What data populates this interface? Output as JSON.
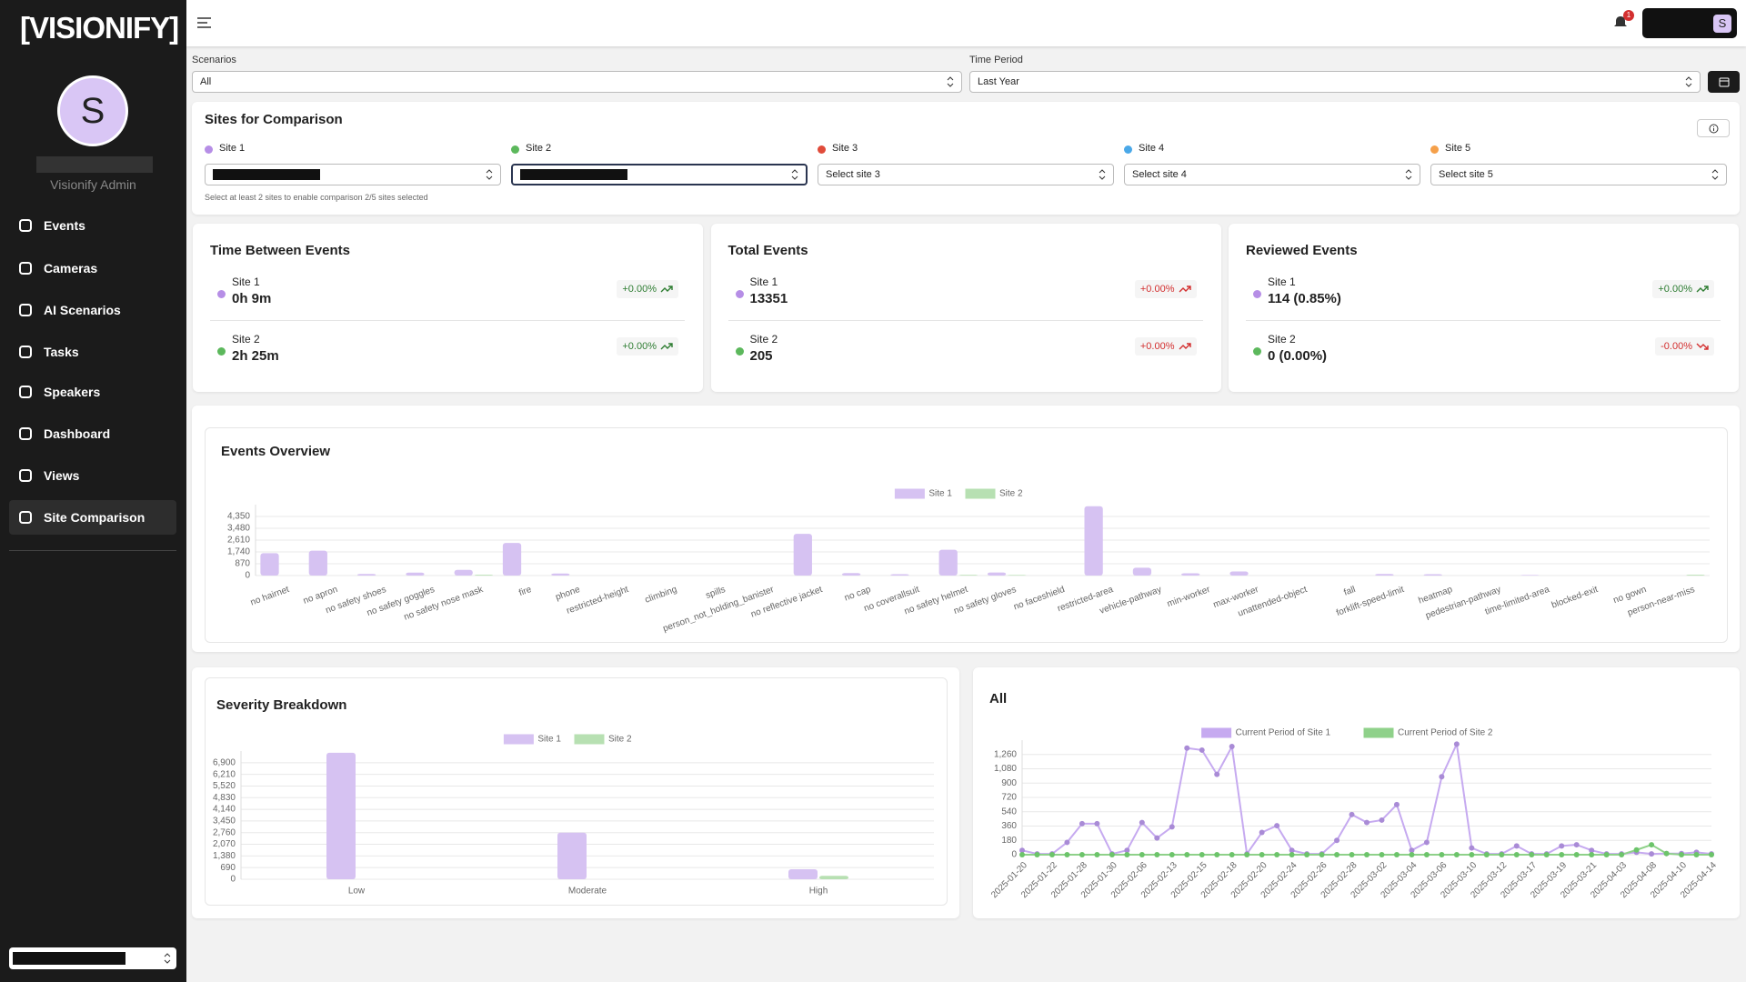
{
  "sidebar": {
    "logo": "[VISIONIFY]",
    "avatar": "S",
    "role": "Visionify Admin",
    "nav": [
      "Events",
      "Cameras",
      "AI Scenarios",
      "Tasks",
      "Speakers",
      "Dashboard",
      "Views",
      "Site Comparison"
    ]
  },
  "header": {
    "notifications": "1",
    "account": "S"
  },
  "filters": {
    "scenarios": {
      "label": "Scenarios",
      "value": "All"
    },
    "time_period": {
      "label": "Time Period",
      "value": "Last Year"
    }
  },
  "sites": {
    "title": "Sites for Comparison",
    "slots": [
      {
        "label": "Site 1"
      },
      {
        "label": "Site 2"
      },
      {
        "label": "Site 3",
        "placeholder": "Select site 3"
      },
      {
        "label": "Site 4",
        "placeholder": "Select site 4"
      },
      {
        "label": "Site 5",
        "placeholder": "Select site 5"
      }
    ],
    "hint": "Select at least 2 sites to enable comparison 2/5 sites selected"
  },
  "stats": [
    {
      "title": "Time Between Events",
      "rows": [
        {
          "site": "Site 1",
          "value": "0h 9m",
          "change": "+0.00%",
          "color": "#2e7d32"
        },
        {
          "site": "Site 2",
          "value": "2h 25m",
          "change": "+0.00%",
          "color": "#2e7d32"
        }
      ]
    },
    {
      "title": "Total Events",
      "rows": [
        {
          "site": "Site 1",
          "value": 13351,
          "change": "+0.00%",
          "color": "#d32f2f"
        },
        {
          "site": "Site 2",
          "value": 205,
          "change": "+0.00%",
          "color": "#d32f2f"
        }
      ]
    },
    {
      "title": "Reviewed Events",
      "rows": [
        {
          "site": "Site 1",
          "value": "114 (0.85%)",
          "change": "+0.00%",
          "color": "#2e7d32"
        },
        {
          "site": "Site 2",
          "value": "0 (0.00%)",
          "change": "-0.00%",
          "color": "#d32f2f"
        }
      ]
    }
  ],
  "chart_data": [
    {
      "type": "bar",
      "title": "Events Overview",
      "categories": [
        "no hairnet",
        "no apron",
        "no safety shoes",
        "no safety goggles",
        "no safety nose mask",
        "fire",
        "phone",
        "restricted-height",
        "climbing",
        "spills",
        "person_not_holding_banister",
        "no reflective jacket",
        "no cap",
        "no coverallsuit",
        "no safety helmet",
        "no safety gloves",
        "no faceshield",
        "restricted-area",
        "vehicle-pathway",
        "min-worker",
        "max-worker",
        "unattended-object",
        "fall",
        "forklift-speed-limit",
        "heatmap",
        "pedestrian-pathway",
        "time-limited-area",
        "blocked-exit",
        "no gown",
        "person-near-miss"
      ],
      "series": [
        {
          "name": "Site 1",
          "color": "#d6c2f2",
          "values": [
            1650,
            1830,
            120,
            220,
            420,
            2400,
            150,
            0,
            0,
            0,
            0,
            3070,
            180,
            100,
            1900,
            230,
            0,
            5100,
            580,
            170,
            300,
            0,
            0,
            120,
            100,
            0,
            40,
            0,
            0,
            0
          ]
        },
        {
          "name": "Site 2",
          "color": "#b7e0b2",
          "values": [
            0,
            0,
            0,
            0,
            60,
            0,
            0,
            0,
            0,
            0,
            0,
            0,
            0,
            0,
            50,
            40,
            0,
            0,
            0,
            0,
            0,
            0,
            0,
            0,
            0,
            0,
            0,
            0,
            0,
            55
          ]
        }
      ],
      "ylim": [
        0,
        5220
      ],
      "yticks": [
        0,
        870,
        {
          "value": 1740,
          "label": "1,740"
        },
        {
          "value": 2610,
          "label": "2,610"
        },
        {
          "value": 3480,
          "label": "3,480"
        },
        {
          "value": 4350,
          "label": "4,350"
        }
      ],
      "grid": true,
      "legend": "top"
    },
    {
      "type": "bar",
      "title": "Severity Breakdown",
      "categories": [
        "Low",
        "Moderate",
        "High"
      ],
      "series": [
        {
          "name": "Site 1",
          "color": "#d6c2f2",
          "values": [
            7490,
            2760,
            590
          ]
        },
        {
          "name": "Site 2",
          "color": "#b7e0b2",
          "values": [
            0,
            0,
            200
          ]
        }
      ],
      "ylim": [
        0,
        7590
      ],
      "yticks": [
        0,
        690,
        {
          "value": 1380,
          "label": "1,380"
        },
        {
          "value": 2070,
          "label": "2,070"
        },
        {
          "value": 2760,
          "label": "2,760"
        },
        {
          "value": 3450,
          "label": "3,450"
        },
        {
          "value": 4140,
          "label": "4,140"
        },
        {
          "value": 4830,
          "label": "4,830"
        },
        {
          "value": 5520,
          "label": "5,520"
        },
        {
          "value": 6210,
          "label": "6,210"
        },
        {
          "value": 6900,
          "label": "6,900"
        }
      ],
      "grid": true,
      "legend": "top"
    },
    {
      "type": "line",
      "title": "All",
      "categories": [
        "2025-01-20",
        null,
        "2025-01-22",
        null,
        "2025-01-28",
        null,
        "2025-01-30",
        null,
        "2025-02-06",
        null,
        "2025-02-13",
        null,
        "2025-02-15",
        null,
        "2025-02-18",
        null,
        "2025-02-20",
        null,
        "2025-02-24",
        null,
        "2025-02-26",
        null,
        "2025-02-28",
        null,
        "2025-03-02",
        null,
        "2025-03-04",
        null,
        "2025-03-06",
        null,
        "2025-03-10",
        null,
        "2025-03-12",
        null,
        "2025-03-17",
        null,
        "2025-03-19",
        null,
        "2025-03-21",
        null,
        "2025-04-03",
        null,
        "2025-04-08",
        null,
        "2025-04-10",
        null,
        "2025-04-14"
      ],
      "series": [
        {
          "name": "Current Period of Site 1",
          "color": "#c6aaf0",
          "values": [
            55,
            10,
            10,
            155,
            390,
            390,
            10,
            55,
            405,
            210,
            350,
            1340,
            1315,
            1010,
            1360,
            10,
            280,
            365,
            55,
            10,
            10,
            180,
            505,
            405,
            435,
            630,
            55,
            155,
            980,
            1390,
            85,
            10,
            10,
            110,
            10,
            10,
            110,
            125,
            55,
            10,
            10,
            30,
            10,
            15,
            15,
            30,
            10
          ]
        },
        {
          "name": "Current Period of Site 2",
          "color": "#8fd18a",
          "values": [
            0,
            0,
            0,
            0,
            0,
            0,
            0,
            0,
            0,
            0,
            0,
            0,
            0,
            0,
            0,
            0,
            0,
            0,
            0,
            0,
            0,
            0,
            0,
            0,
            0,
            0,
            0,
            0,
            0,
            0,
            0,
            0,
            0,
            0,
            0,
            0,
            0,
            0,
            0,
            0,
            0,
            60,
            125,
            15,
            0,
            0,
            0
          ]
        }
      ],
      "ylim": [
        0,
        1440
      ],
      "yticks": [
        0,
        180,
        360,
        540,
        720,
        900,
        {
          "value": 1080,
          "label": "1,080"
        },
        {
          "value": 1260,
          "label": "1,260"
        }
      ],
      "grid": true,
      "legend": "top"
    }
  ]
}
